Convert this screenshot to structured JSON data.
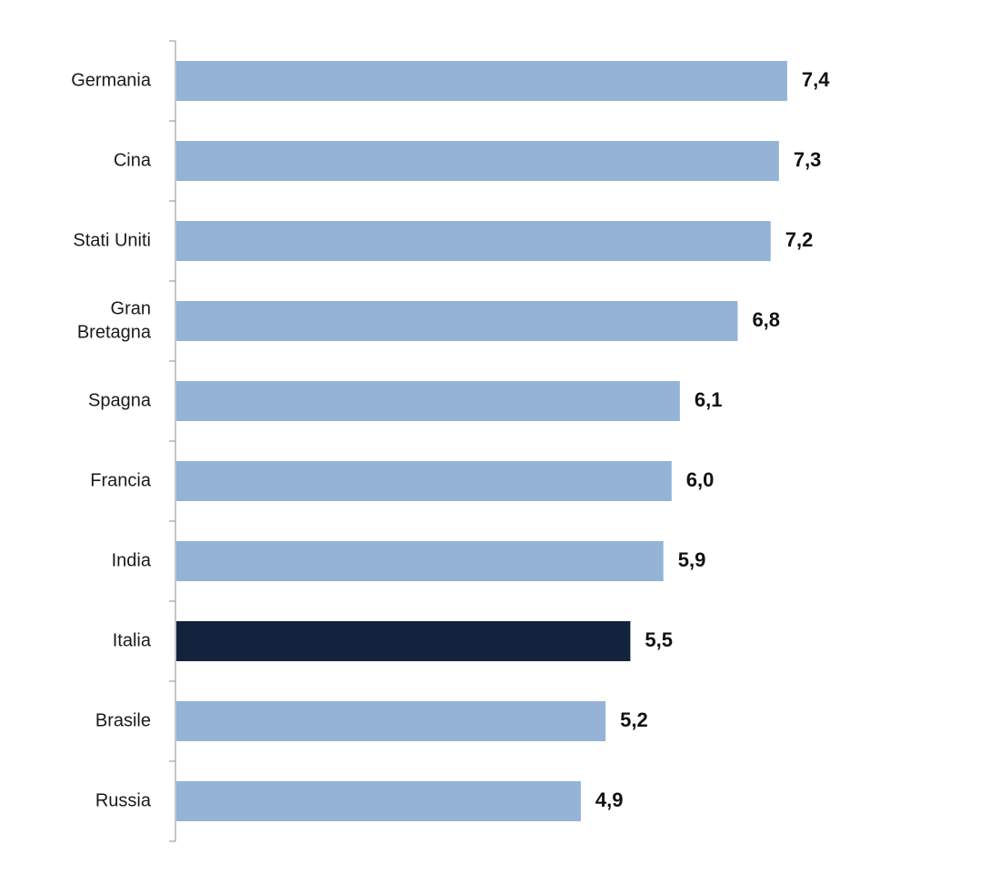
{
  "chart_data": {
    "type": "bar",
    "orientation": "horizontal",
    "categories": [
      [
        "Germania"
      ],
      [
        "Cina"
      ],
      [
        "Stati Uniti"
      ],
      [
        "Gran",
        "Bretagna"
      ],
      [
        "Spagna"
      ],
      [
        "Francia"
      ],
      [
        "India"
      ],
      [
        "Italia"
      ],
      [
        "Brasile"
      ],
      [
        "Russia"
      ]
    ],
    "values": [
      7.4,
      7.3,
      7.2,
      6.8,
      6.1,
      6.0,
      5.9,
      5.5,
      5.2,
      4.9
    ],
    "value_labels": [
      "7,4",
      "7,3",
      "7,2",
      "6,8",
      "6,1",
      "6,0",
      "5,9",
      "5,5",
      "5,2",
      "4,9"
    ],
    "highlighted_category": "Italia",
    "xlim": [
      0,
      10
    ],
    "grid": false,
    "legend": "none",
    "colors": {
      "bar": "#95b3d7",
      "highlight": "#13233d",
      "axis": "#8c8c8c"
    }
  }
}
